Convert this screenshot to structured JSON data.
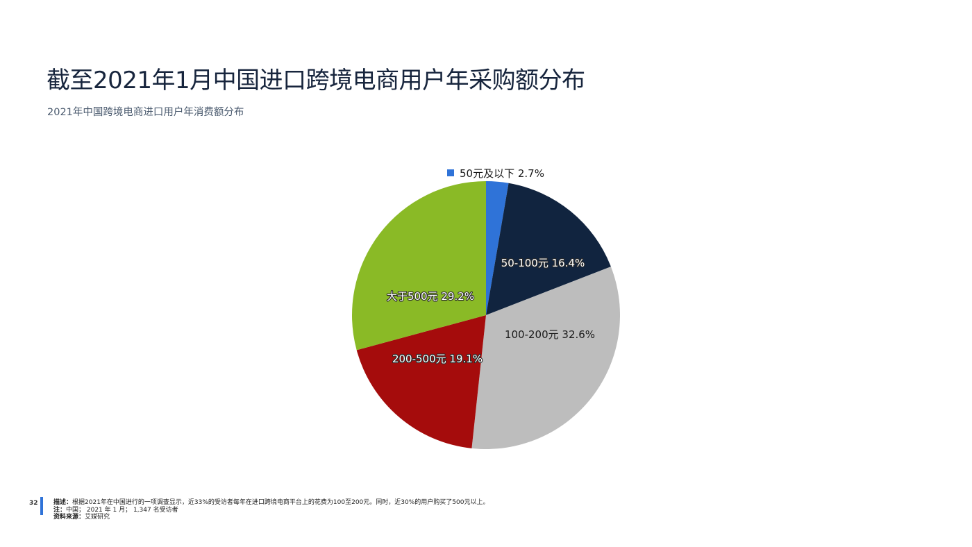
{
  "page": {
    "title": "截至2021年1月中国进口跨境电商用户年采购额分布",
    "subtitle": "2021年中国跨境电商进口用户年消费额分布",
    "page_number": "32"
  },
  "footer": {
    "desc_label": "描述：",
    "desc_text": "根据2021年在中国进行的一项调查显示，近33%的受访者每年在进口跨境电商平台上的花费为100至200元。同时，近30%的用户购买了500元以上。",
    "note_label": "注：",
    "note_text": "中国； 2021 年 1 月； 1,347 名受访者",
    "source_label": "资料来源：",
    "source_text": "艾媒研究"
  },
  "chart_data": {
    "type": "pie",
    "start_angle_deg": 0,
    "direction": "clockwise",
    "slices": [
      {
        "label": "50元及以下",
        "value": 2.7,
        "display": "2.7%",
        "color": "#2f73d8"
      },
      {
        "label": "50-100元",
        "value": 16.4,
        "display": "16.4%",
        "color": "#11243f"
      },
      {
        "label": "100-200元",
        "value": 32.6,
        "display": "32.6%",
        "color": "#bdbdbd"
      },
      {
        "label": "200-500元",
        "value": 19.1,
        "display": "19.1%",
        "color": "#a50c0c"
      },
      {
        "label": "大于500元",
        "value": 29.2,
        "display": "29.2%",
        "color": "#8aba26"
      }
    ]
  }
}
